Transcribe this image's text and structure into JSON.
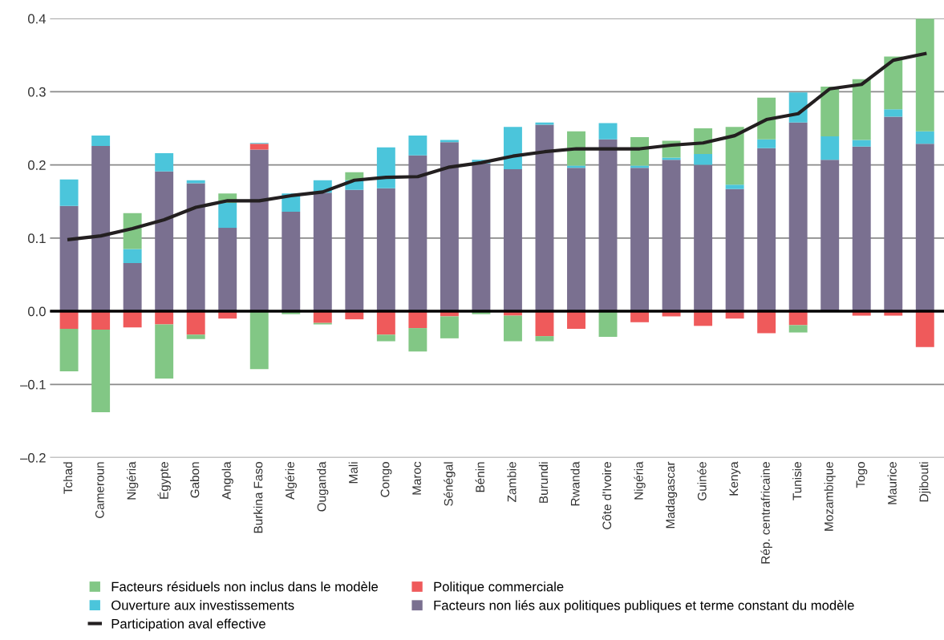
{
  "chart_data": {
    "type": "bar",
    "stacked": true,
    "categories": [
      "Tchad",
      "Cameroun",
      "Nigéria",
      "Égypte",
      "Gabon",
      "Angola",
      "Burkina Faso",
      "Algérie",
      "Ouganda",
      "Mali",
      "Congo",
      "Maroc",
      "Sénégal",
      "Bénin",
      "Zambie",
      "Burundi",
      "Rwanda",
      "Côte d'Ivoire",
      "Nigéria",
      "Madagascar",
      "Guinée",
      "Kenya",
      "Rép. centrafricaine",
      "Tunisie",
      "Mozambique",
      "Togo",
      "Maurice",
      "Djibouti"
    ],
    "series": [
      {
        "name": "Facteurs non liés aux politiques publiques et terme constant du modèle",
        "color": "#7a7090",
        "values": [
          0.144,
          0.226,
          0.066,
          0.191,
          0.175,
          0.114,
          0.221,
          0.136,
          0.162,
          0.166,
          0.168,
          0.213,
          0.231,
          0.202,
          0.194,
          0.255,
          0.196,
          0.235,
          0.196,
          0.207,
          0.2,
          0.167,
          0.223,
          0.258,
          0.207,
          0.225,
          0.266,
          0.229
        ]
      },
      {
        "name": "Politique commerciale",
        "color": "#ef5a5b",
        "values": [
          -0.024,
          -0.025,
          -0.022,
          -0.018,
          -0.032,
          -0.01,
          0.008,
          null,
          -0.016,
          -0.011,
          -0.032,
          -0.023,
          -0.007,
          null,
          -0.006,
          -0.034,
          -0.024,
          null,
          -0.015,
          -0.007,
          -0.02,
          -0.01,
          -0.03,
          -0.019,
          null,
          -0.006,
          -0.006,
          -0.049
        ]
      },
      {
        "name": "Ouverture aux investissements",
        "color": "#4bc5db",
        "values": [
          0.036,
          0.014,
          0.019,
          0.025,
          0.004,
          0.034,
          0.001,
          0.025,
          0.017,
          0.013,
          0.056,
          0.027,
          0.003,
          0.005,
          0.058,
          0.003,
          0.003,
          0.022,
          0.003,
          0.003,
          0.015,
          0.006,
          0.012,
          0.041,
          0.032,
          0.009,
          0.01,
          0.017
        ]
      },
      {
        "name": "Facteurs résiduels non inclus dans le modèle",
        "color": "#82c785",
        "values": [
          -0.058,
          -0.113,
          0.049,
          -0.074,
          -0.006,
          0.013,
          -0.079,
          -0.004,
          -0.002,
          0.011,
          -0.009,
          -0.032,
          -0.03,
          -0.004,
          -0.035,
          -0.007,
          0.047,
          -0.035,
          0.039,
          0.023,
          0.035,
          0.079,
          0.057,
          -0.01,
          0.068,
          0.083,
          0.072,
          0.154
        ]
      },
      {
        "name": "Participation aval effective",
        "type": "line",
        "color": "#231f20",
        "values": [
          0.098,
          0.103,
          0.113,
          0.125,
          0.142,
          0.151,
          0.151,
          0.158,
          0.163,
          0.179,
          0.183,
          0.184,
          0.197,
          0.203,
          0.212,
          0.218,
          0.222,
          0.222,
          0.222,
          0.227,
          0.23,
          0.24,
          0.262,
          0.27,
          0.304,
          0.31,
          0.343,
          0.352
        ]
      }
    ],
    "ylim": [
      -0.2,
      0.4
    ],
    "yticks": [
      {
        "value": -0.2,
        "label": "–0.2"
      },
      {
        "value": -0.1,
        "label": "–0.1"
      },
      {
        "value": 0.0,
        "label": "0.0"
      },
      0.1,
      0.2,
      0.3,
      0.4
    ],
    "ref_lines": [
      {
        "axis": "y",
        "value": 0,
        "color": "#000000"
      }
    ],
    "grid": "y",
    "legend": "bottom",
    "marker": "none",
    "line_style": "solid"
  }
}
